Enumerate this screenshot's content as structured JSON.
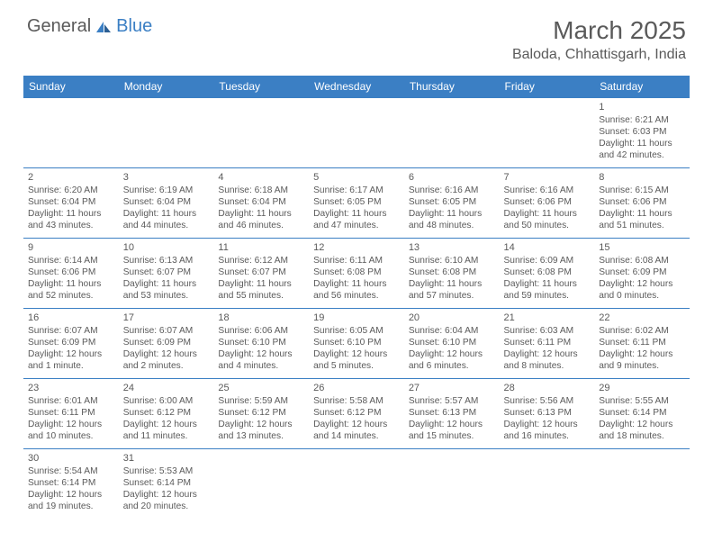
{
  "logo": {
    "general": "General",
    "blue": "Blue"
  },
  "title": "March 2025",
  "location": "Baloda, Chhattisgarh, India",
  "colors": {
    "header_bg": "#3b7fc4",
    "text": "#5a5a5a",
    "border": "#3b7fc4"
  },
  "weekdays": [
    "Sunday",
    "Monday",
    "Tuesday",
    "Wednesday",
    "Thursday",
    "Friday",
    "Saturday"
  ],
  "weeks": [
    [
      null,
      null,
      null,
      null,
      null,
      null,
      {
        "n": "1",
        "sr": "Sunrise: 6:21 AM",
        "ss": "Sunset: 6:03 PM",
        "dl": "Daylight: 11 hours and 42 minutes."
      }
    ],
    [
      {
        "n": "2",
        "sr": "Sunrise: 6:20 AM",
        "ss": "Sunset: 6:04 PM",
        "dl": "Daylight: 11 hours and 43 minutes."
      },
      {
        "n": "3",
        "sr": "Sunrise: 6:19 AM",
        "ss": "Sunset: 6:04 PM",
        "dl": "Daylight: 11 hours and 44 minutes."
      },
      {
        "n": "4",
        "sr": "Sunrise: 6:18 AM",
        "ss": "Sunset: 6:04 PM",
        "dl": "Daylight: 11 hours and 46 minutes."
      },
      {
        "n": "5",
        "sr": "Sunrise: 6:17 AM",
        "ss": "Sunset: 6:05 PM",
        "dl": "Daylight: 11 hours and 47 minutes."
      },
      {
        "n": "6",
        "sr": "Sunrise: 6:16 AM",
        "ss": "Sunset: 6:05 PM",
        "dl": "Daylight: 11 hours and 48 minutes."
      },
      {
        "n": "7",
        "sr": "Sunrise: 6:16 AM",
        "ss": "Sunset: 6:06 PM",
        "dl": "Daylight: 11 hours and 50 minutes."
      },
      {
        "n": "8",
        "sr": "Sunrise: 6:15 AM",
        "ss": "Sunset: 6:06 PM",
        "dl": "Daylight: 11 hours and 51 minutes."
      }
    ],
    [
      {
        "n": "9",
        "sr": "Sunrise: 6:14 AM",
        "ss": "Sunset: 6:06 PM",
        "dl": "Daylight: 11 hours and 52 minutes."
      },
      {
        "n": "10",
        "sr": "Sunrise: 6:13 AM",
        "ss": "Sunset: 6:07 PM",
        "dl": "Daylight: 11 hours and 53 minutes."
      },
      {
        "n": "11",
        "sr": "Sunrise: 6:12 AM",
        "ss": "Sunset: 6:07 PM",
        "dl": "Daylight: 11 hours and 55 minutes."
      },
      {
        "n": "12",
        "sr": "Sunrise: 6:11 AM",
        "ss": "Sunset: 6:08 PM",
        "dl": "Daylight: 11 hours and 56 minutes."
      },
      {
        "n": "13",
        "sr": "Sunrise: 6:10 AM",
        "ss": "Sunset: 6:08 PM",
        "dl": "Daylight: 11 hours and 57 minutes."
      },
      {
        "n": "14",
        "sr": "Sunrise: 6:09 AM",
        "ss": "Sunset: 6:08 PM",
        "dl": "Daylight: 11 hours and 59 minutes."
      },
      {
        "n": "15",
        "sr": "Sunrise: 6:08 AM",
        "ss": "Sunset: 6:09 PM",
        "dl": "Daylight: 12 hours and 0 minutes."
      }
    ],
    [
      {
        "n": "16",
        "sr": "Sunrise: 6:07 AM",
        "ss": "Sunset: 6:09 PM",
        "dl": "Daylight: 12 hours and 1 minute."
      },
      {
        "n": "17",
        "sr": "Sunrise: 6:07 AM",
        "ss": "Sunset: 6:09 PM",
        "dl": "Daylight: 12 hours and 2 minutes."
      },
      {
        "n": "18",
        "sr": "Sunrise: 6:06 AM",
        "ss": "Sunset: 6:10 PM",
        "dl": "Daylight: 12 hours and 4 minutes."
      },
      {
        "n": "19",
        "sr": "Sunrise: 6:05 AM",
        "ss": "Sunset: 6:10 PM",
        "dl": "Daylight: 12 hours and 5 minutes."
      },
      {
        "n": "20",
        "sr": "Sunrise: 6:04 AM",
        "ss": "Sunset: 6:10 PM",
        "dl": "Daylight: 12 hours and 6 minutes."
      },
      {
        "n": "21",
        "sr": "Sunrise: 6:03 AM",
        "ss": "Sunset: 6:11 PM",
        "dl": "Daylight: 12 hours and 8 minutes."
      },
      {
        "n": "22",
        "sr": "Sunrise: 6:02 AM",
        "ss": "Sunset: 6:11 PM",
        "dl": "Daylight: 12 hours and 9 minutes."
      }
    ],
    [
      {
        "n": "23",
        "sr": "Sunrise: 6:01 AM",
        "ss": "Sunset: 6:11 PM",
        "dl": "Daylight: 12 hours and 10 minutes."
      },
      {
        "n": "24",
        "sr": "Sunrise: 6:00 AM",
        "ss": "Sunset: 6:12 PM",
        "dl": "Daylight: 12 hours and 11 minutes."
      },
      {
        "n": "25",
        "sr": "Sunrise: 5:59 AM",
        "ss": "Sunset: 6:12 PM",
        "dl": "Daylight: 12 hours and 13 minutes."
      },
      {
        "n": "26",
        "sr": "Sunrise: 5:58 AM",
        "ss": "Sunset: 6:12 PM",
        "dl": "Daylight: 12 hours and 14 minutes."
      },
      {
        "n": "27",
        "sr": "Sunrise: 5:57 AM",
        "ss": "Sunset: 6:13 PM",
        "dl": "Daylight: 12 hours and 15 minutes."
      },
      {
        "n": "28",
        "sr": "Sunrise: 5:56 AM",
        "ss": "Sunset: 6:13 PM",
        "dl": "Daylight: 12 hours and 16 minutes."
      },
      {
        "n": "29",
        "sr": "Sunrise: 5:55 AM",
        "ss": "Sunset: 6:14 PM",
        "dl": "Daylight: 12 hours and 18 minutes."
      }
    ],
    [
      {
        "n": "30",
        "sr": "Sunrise: 5:54 AM",
        "ss": "Sunset: 6:14 PM",
        "dl": "Daylight: 12 hours and 19 minutes."
      },
      {
        "n": "31",
        "sr": "Sunrise: 5:53 AM",
        "ss": "Sunset: 6:14 PM",
        "dl": "Daylight: 12 hours and 20 minutes."
      },
      null,
      null,
      null,
      null,
      null
    ]
  ]
}
